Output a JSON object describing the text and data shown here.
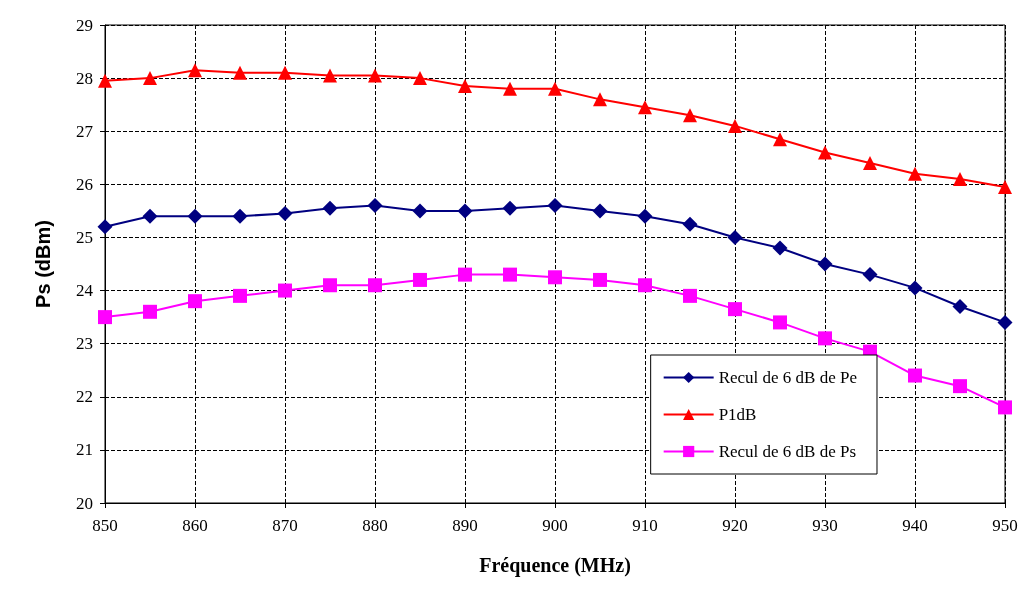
{
  "chart_data": {
    "type": "line",
    "xlabel": "Fréquence (MHz)",
    "ylabel": "Ps (dBm)",
    "x": [
      850,
      855,
      860,
      865,
      870,
      875,
      880,
      885,
      890,
      895,
      900,
      905,
      910,
      915,
      920,
      925,
      930,
      935,
      940,
      945,
      950
    ],
    "xlim": [
      850,
      950
    ],
    "xticks": [
      850,
      860,
      870,
      880,
      890,
      900,
      910,
      920,
      930,
      940,
      950
    ],
    "ylim": [
      20,
      29
    ],
    "yticks": [
      20,
      21,
      22,
      23,
      24,
      25,
      26,
      27,
      28,
      29
    ],
    "grid": true,
    "legend": "bottom right",
    "line_style": "solid",
    "series": [
      {
        "name": "Recul de 6 dB de Pe",
        "color": "#000080",
        "marker": "diamond",
        "values": [
          25.2,
          25.4,
          25.4,
          25.4,
          25.45,
          25.55,
          25.6,
          25.5,
          25.5,
          25.55,
          25.6,
          25.5,
          25.4,
          25.25,
          25.0,
          24.8,
          24.5,
          24.3,
          24.05,
          23.7,
          23.4
        ]
      },
      {
        "name": "P1dB",
        "color": "#ff0000",
        "marker": "triangle",
        "values": [
          27.95,
          28.0,
          28.15,
          28.1,
          28.1,
          28.05,
          28.05,
          28.0,
          27.85,
          27.8,
          27.8,
          27.6,
          27.45,
          27.3,
          27.1,
          26.85,
          26.6,
          26.4,
          26.2,
          26.1,
          25.95
        ]
      },
      {
        "name": "Recul de 6 dB de Ps",
        "color": "#ff00ff",
        "marker": "square",
        "values": [
          23.5,
          23.6,
          23.8,
          23.9,
          24.0,
          24.1,
          24.1,
          24.2,
          24.3,
          24.3,
          24.25,
          24.2,
          24.1,
          23.9,
          23.65,
          23.4,
          23.1,
          22.85,
          22.4,
          22.2,
          21.8
        ]
      }
    ]
  }
}
